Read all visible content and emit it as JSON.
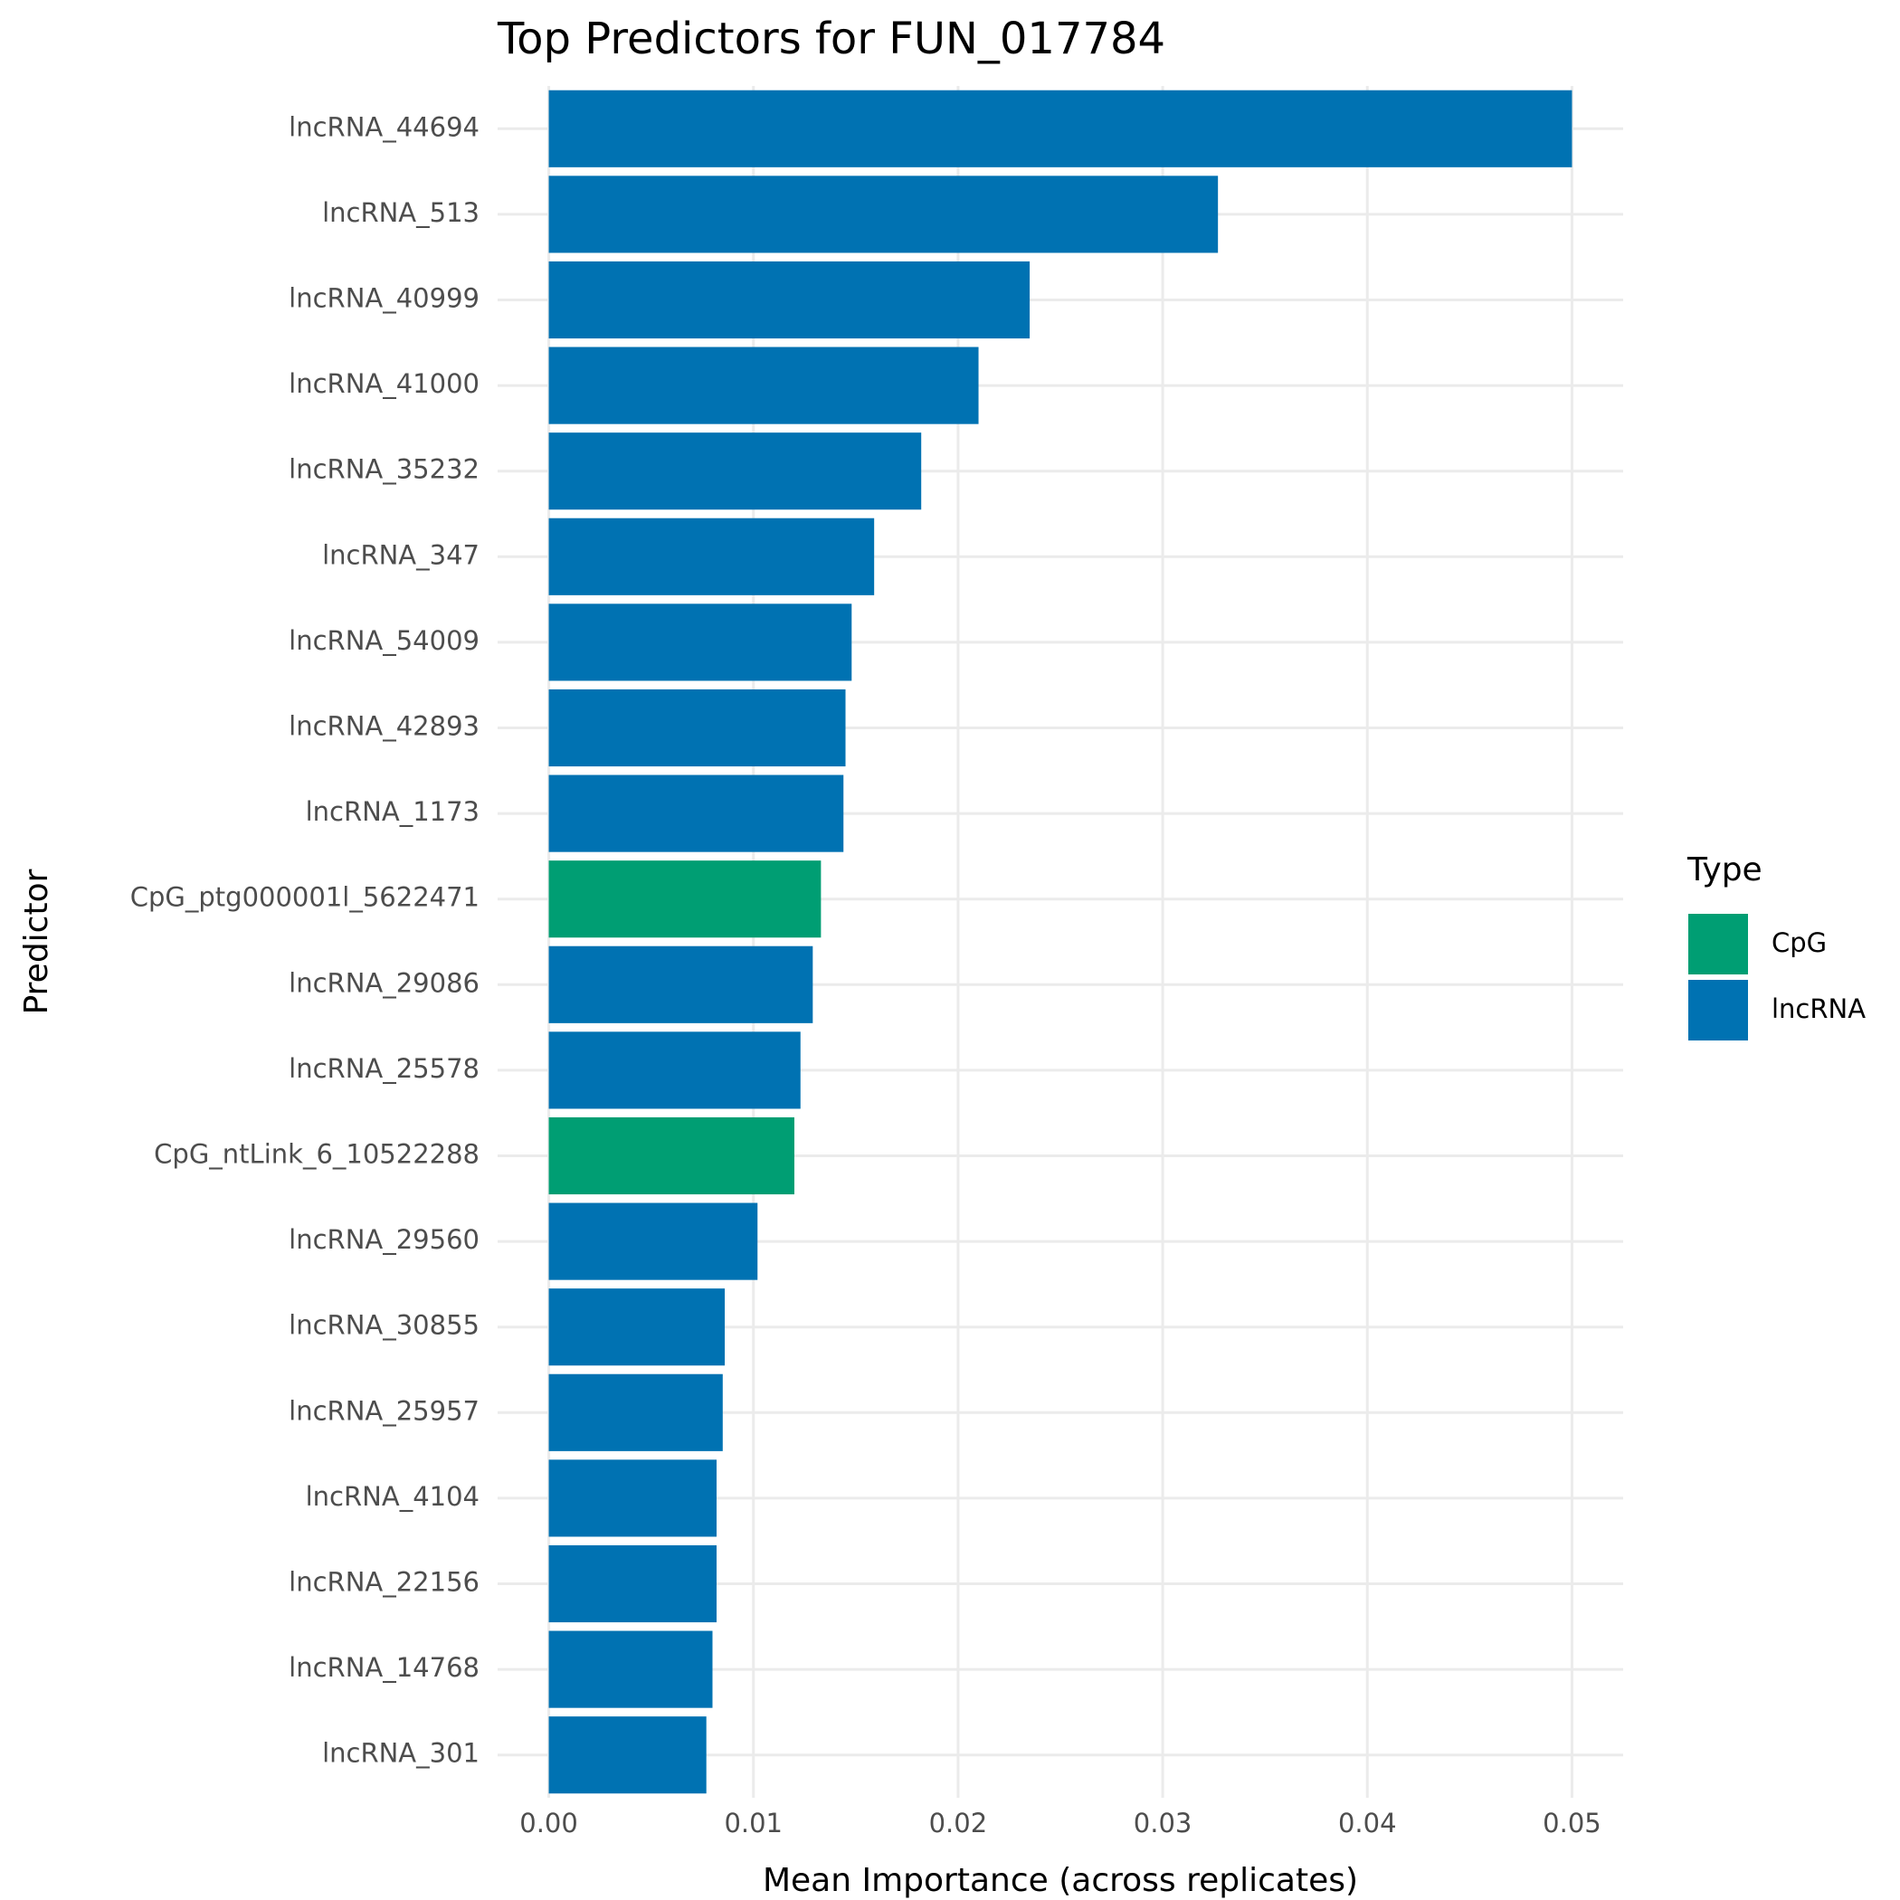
{
  "chart_data": {
    "type": "bar",
    "orientation": "horizontal",
    "title": "Top Predictors for FUN_017784",
    "x_label": "Mean Importance (across replicates)",
    "y_label": "Predictor",
    "legend_title": "Type",
    "legend_position": "right",
    "grid": true,
    "categories": [
      "lncRNA_44694",
      "lncRNA_513",
      "lncRNA_40999",
      "lncRNA_41000",
      "lncRNA_35232",
      "lncRNA_347",
      "lncRNA_54009",
      "lncRNA_42893",
      "lncRNA_1173",
      "CpG_ptg000001l_5622471",
      "lncRNA_29086",
      "lncRNA_25578",
      "CpG_ntLink_6_10522288",
      "lncRNA_29560",
      "lncRNA_30855",
      "lncRNA_25957",
      "lncRNA_4104",
      "lncRNA_22156",
      "lncRNA_14768",
      "lncRNA_301"
    ],
    "series": [
      {
        "name": "CpG",
        "color": "#009E73",
        "values": [
          null,
          null,
          null,
          null,
          null,
          null,
          null,
          null,
          null,
          0.0133,
          null,
          null,
          0.012,
          null,
          null,
          null,
          null,
          null,
          null,
          null
        ]
      },
      {
        "name": "lncRNA",
        "color": "#0072B2",
        "values": [
          0.05,
          0.0327,
          0.0235,
          0.021,
          0.0182,
          0.0159,
          0.0148,
          0.0145,
          0.0144,
          null,
          0.0129,
          0.0123,
          null,
          0.0102,
          0.0086,
          0.0085,
          0.0082,
          0.0082,
          0.008,
          0.0077
        ]
      }
    ],
    "xlim": [
      -0.0025,
      0.0525
    ],
    "xticks": [
      {
        "value": 0,
        "label": "0.00"
      },
      {
        "value": 0.01,
        "label": "0.01"
      },
      {
        "value": 0.02,
        "label": "0.02"
      },
      {
        "value": 0.03,
        "label": "0.03"
      },
      {
        "value": 0.04,
        "label": "0.04"
      },
      {
        "value": 0.05,
        "label": "0.05"
      }
    ]
  }
}
